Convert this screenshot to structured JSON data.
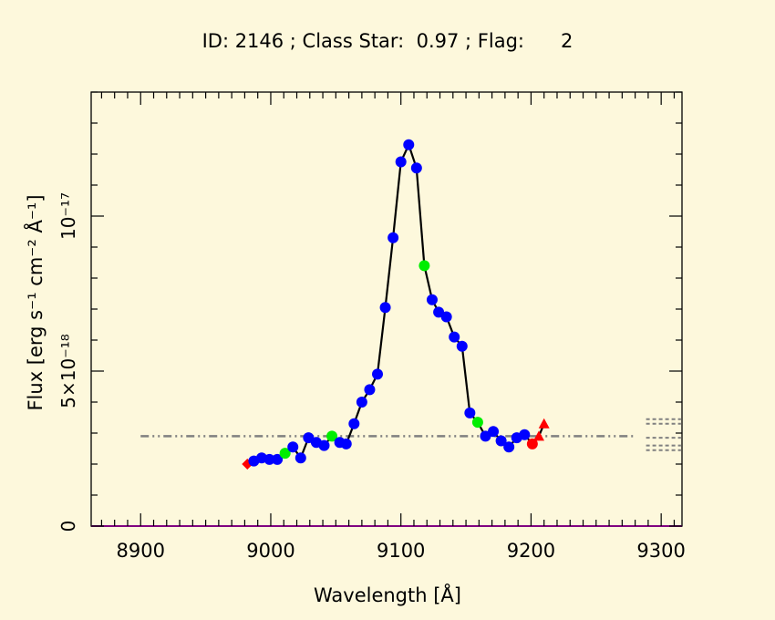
{
  "chart_data": {
    "type": "line",
    "title": "ID: 2146 ; Class Star:  0.97 ; Flag:      2",
    "xlabel": "Wavelength [Å]",
    "ylabel": "Flux [erg s⁻¹ cm⁻² Å⁻¹]",
    "xlim": [
      8862,
      9316
    ],
    "ylim": [
      0,
      1.4e-17
    ],
    "x_ticks": [
      8900,
      9000,
      9100,
      9200,
      9300
    ],
    "y_ticks": [
      {
        "value": 0,
        "label": "0"
      },
      {
        "value": 5e-18,
        "label": "5×10⁻¹⁸"
      },
      {
        "value": 1e-17,
        "label": "10⁻¹⁷"
      }
    ],
    "continuum_level": 2.9e-18,
    "continuum_range": [
      8900,
      9280
    ],
    "continuum_extension_levels": [
      3.45e-18,
      3.3e-18,
      2.85e-18,
      2.6e-18,
      2.45e-18
    ],
    "continuum_extension_range": [
      9280,
      9318
    ],
    "colors": {
      "background": "#fdf8dc",
      "line": "#000000",
      "normal_point": "#0000ff",
      "highlight_point": "#00ee00",
      "edge_point": "#ff0000",
      "continuum": "#808080",
      "zero_axis": "#800080"
    },
    "series": [
      {
        "points": [
          {
            "x": 8982,
            "y": 2e-18,
            "kind": "edge",
            "marker": "diamond"
          },
          {
            "x": 8987,
            "y": 2.1e-18,
            "kind": "normal"
          },
          {
            "x": 8993,
            "y": 2.2e-18,
            "kind": "normal"
          },
          {
            "x": 8999,
            "y": 2.15e-18,
            "kind": "normal"
          },
          {
            "x": 9005,
            "y": 2.15e-18,
            "kind": "normal"
          },
          {
            "x": 9011,
            "y": 2.35e-18,
            "kind": "highlight"
          },
          {
            "x": 9017,
            "y": 2.55e-18,
            "kind": "normal"
          },
          {
            "x": 9023,
            "y": 2.2e-18,
            "kind": "normal"
          },
          {
            "x": 9029,
            "y": 2.85e-18,
            "kind": "normal"
          },
          {
            "x": 9035,
            "y": 2.7e-18,
            "kind": "normal"
          },
          {
            "x": 9041,
            "y": 2.6e-18,
            "kind": "normal"
          },
          {
            "x": 9047,
            "y": 2.9e-18,
            "kind": "highlight"
          },
          {
            "x": 9053,
            "y": 2.7e-18,
            "kind": "normal"
          },
          {
            "x": 9058,
            "y": 2.65e-18,
            "kind": "normal"
          },
          {
            "x": 9064,
            "y": 3.3e-18,
            "kind": "normal"
          },
          {
            "x": 9070,
            "y": 4e-18,
            "kind": "normal"
          },
          {
            "x": 9076,
            "y": 4.4e-18,
            "kind": "normal"
          },
          {
            "x": 9082,
            "y": 4.9e-18,
            "kind": "normal"
          },
          {
            "x": 9088,
            "y": 7.05e-18,
            "kind": "normal"
          },
          {
            "x": 9094,
            "y": 9.3e-18,
            "kind": "normal"
          },
          {
            "x": 9100,
            "y": 1.175e-17,
            "kind": "normal"
          },
          {
            "x": 9106,
            "y": 1.23e-17,
            "kind": "normal"
          },
          {
            "x": 9112,
            "y": 1.155e-17,
            "kind": "normal"
          },
          {
            "x": 9118,
            "y": 8.4e-18,
            "kind": "highlight"
          },
          {
            "x": 9124,
            "y": 7.3e-18,
            "kind": "normal"
          },
          {
            "x": 9129,
            "y": 6.9e-18,
            "kind": "normal"
          },
          {
            "x": 9135,
            "y": 6.75e-18,
            "kind": "normal"
          },
          {
            "x": 9141,
            "y": 6.1e-18,
            "kind": "normal"
          },
          {
            "x": 9147,
            "y": 5.8e-18,
            "kind": "normal"
          },
          {
            "x": 9153,
            "y": 3.65e-18,
            "kind": "normal"
          },
          {
            "x": 9159,
            "y": 3.35e-18,
            "kind": "highlight"
          },
          {
            "x": 9165,
            "y": 2.9e-18,
            "kind": "normal"
          },
          {
            "x": 9171,
            "y": 3.05e-18,
            "kind": "normal"
          },
          {
            "x": 9177,
            "y": 2.75e-18,
            "kind": "normal"
          },
          {
            "x": 9183,
            "y": 2.55e-18,
            "kind": "normal"
          },
          {
            "x": 9189,
            "y": 2.85e-18,
            "kind": "normal"
          },
          {
            "x": 9195,
            "y": 2.95e-18,
            "kind": "normal"
          },
          {
            "x": 9201,
            "y": 2.65e-18,
            "kind": "edge",
            "marker": "circle"
          },
          {
            "x": 9206,
            "y": 2.9e-18,
            "kind": "edge",
            "marker": "triangle"
          },
          {
            "x": 9210,
            "y": 3.3e-18,
            "kind": "edge",
            "marker": "triangle"
          }
        ]
      }
    ]
  }
}
